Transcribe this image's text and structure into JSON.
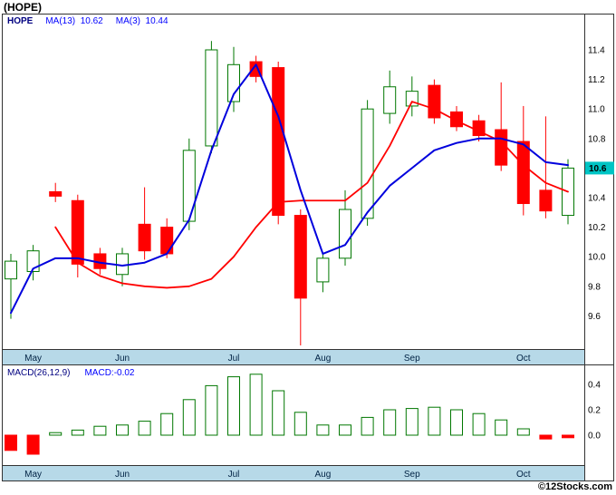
{
  "header": {
    "title": "(HOPE)"
  },
  "price_panel": {
    "legend": {
      "symbol": "HOPE",
      "ma13_label": "MA(13)",
      "ma13_value": "10.62",
      "ma3_label": "MA(3)",
      "ma3_value": "10.44"
    },
    "last_price_tag": "10.6"
  },
  "macd_panel": {
    "legend": {
      "label": "MACD(26,12,9)",
      "value": "MACD:-0.02"
    }
  },
  "footer": {
    "credit": "©12Stocks.com"
  },
  "colors": {
    "up": "#007700",
    "down": "#ff0000",
    "ma13_line": "#0000dd",
    "ma3_line": "#ff0000",
    "band": "#b7d9e8",
    "frame": "#333333",
    "tag_bg": "#00c4c4",
    "month_text": "#002244",
    "legend_symbol": "#000080",
    "legend_value": "#0000ff"
  },
  "chart_data": [
    {
      "type": "candlestick",
      "title": "(HOPE) weekly price with moving averages",
      "x_tick_labels": [
        "May",
        "Jun",
        "Jul",
        "Aug",
        "Sep",
        "Oct"
      ],
      "x_tick_indices": [
        1,
        5,
        10,
        14,
        18,
        23
      ],
      "ylim": [
        9.35,
        11.55
      ],
      "y_ticks": [
        11.4,
        11.2,
        11.0,
        10.8,
        10.6,
        10.4,
        10.2,
        10.0,
        9.8,
        9.6
      ],
      "last_price": 10.6,
      "candles_ohlc": [
        [
          9.85,
          10.02,
          9.58,
          9.97
        ],
        [
          9.9,
          10.08,
          9.84,
          10.04
        ],
        [
          10.44,
          10.5,
          10.37,
          10.41
        ],
        [
          10.38,
          10.42,
          9.86,
          9.95
        ],
        [
          10.02,
          10.06,
          9.88,
          9.92
        ],
        [
          9.88,
          10.06,
          9.8,
          10.02
        ],
        [
          10.22,
          10.47,
          9.98,
          10.04
        ],
        [
          10.2,
          10.26,
          9.99,
          10.02
        ],
        [
          10.24,
          10.8,
          10.18,
          10.72
        ],
        [
          10.75,
          11.46,
          10.7,
          11.4
        ],
        [
          11.05,
          11.42,
          10.98,
          11.3
        ],
        [
          11.32,
          11.36,
          11.18,
          11.22
        ],
        [
          11.28,
          11.32,
          10.22,
          10.28
        ],
        [
          10.28,
          10.32,
          9.4,
          9.72
        ],
        [
          9.83,
          10.02,
          9.76,
          9.99
        ],
        [
          9.99,
          10.45,
          9.94,
          10.32
        ],
        [
          10.26,
          11.06,
          10.21,
          11.0
        ],
        [
          10.97,
          11.26,
          10.9,
          11.15
        ],
        [
          11.02,
          11.22,
          10.95,
          11.12
        ],
        [
          11.16,
          11.2,
          10.9,
          10.94
        ],
        [
          10.98,
          11.02,
          10.85,
          10.88
        ],
        [
          10.92,
          10.96,
          10.78,
          10.82
        ],
        [
          10.86,
          11.18,
          10.58,
          10.62
        ],
        [
          10.78,
          11.02,
          10.28,
          10.36
        ],
        [
          10.45,
          10.95,
          10.26,
          10.31
        ],
        [
          10.28,
          10.66,
          10.22,
          10.6
        ]
      ],
      "overlays": [
        {
          "name": "MA(13)",
          "current": 10.62,
          "color_key": "ma13_line",
          "values": [
            9.62,
            9.92,
            9.99,
            9.99,
            9.96,
            9.94,
            9.96,
            10.02,
            10.25,
            10.72,
            11.1,
            11.3,
            10.95,
            10.45,
            10.02,
            10.08,
            10.3,
            10.48,
            10.6,
            10.72,
            10.77,
            10.8,
            10.8,
            10.76,
            10.64,
            10.62
          ]
        },
        {
          "name": "MA(3)",
          "current": 10.44,
          "color_key": "ma3_line",
          "values": [
            null,
            null,
            10.2,
            9.96,
            9.87,
            9.82,
            9.8,
            9.79,
            9.8,
            9.85,
            10.0,
            10.2,
            10.37,
            10.38,
            10.38,
            10.38,
            10.5,
            10.75,
            11.05,
            11.0,
            10.92,
            10.85,
            10.78,
            10.62,
            10.5,
            10.44
          ]
        }
      ]
    },
    {
      "type": "bar",
      "title": "MACD(26,12,9) histogram",
      "current": -0.02,
      "x_tick_labels": [
        "May",
        "Jun",
        "Jul",
        "Aug",
        "Sep",
        "Oct"
      ],
      "x_tick_indices": [
        1,
        5,
        10,
        14,
        18,
        23
      ],
      "y_ticks": [
        0.4,
        0.2,
        0.0
      ],
      "ylim": [
        -0.25,
        0.55
      ],
      "values": [
        -0.12,
        -0.15,
        0.02,
        0.04,
        0.07,
        0.08,
        0.11,
        0.17,
        0.28,
        0.39,
        0.46,
        0.48,
        0.35,
        0.18,
        0.08,
        0.08,
        0.14,
        0.2,
        0.21,
        0.22,
        0.2,
        0.17,
        0.12,
        0.05,
        -0.03,
        -0.02
      ]
    }
  ]
}
